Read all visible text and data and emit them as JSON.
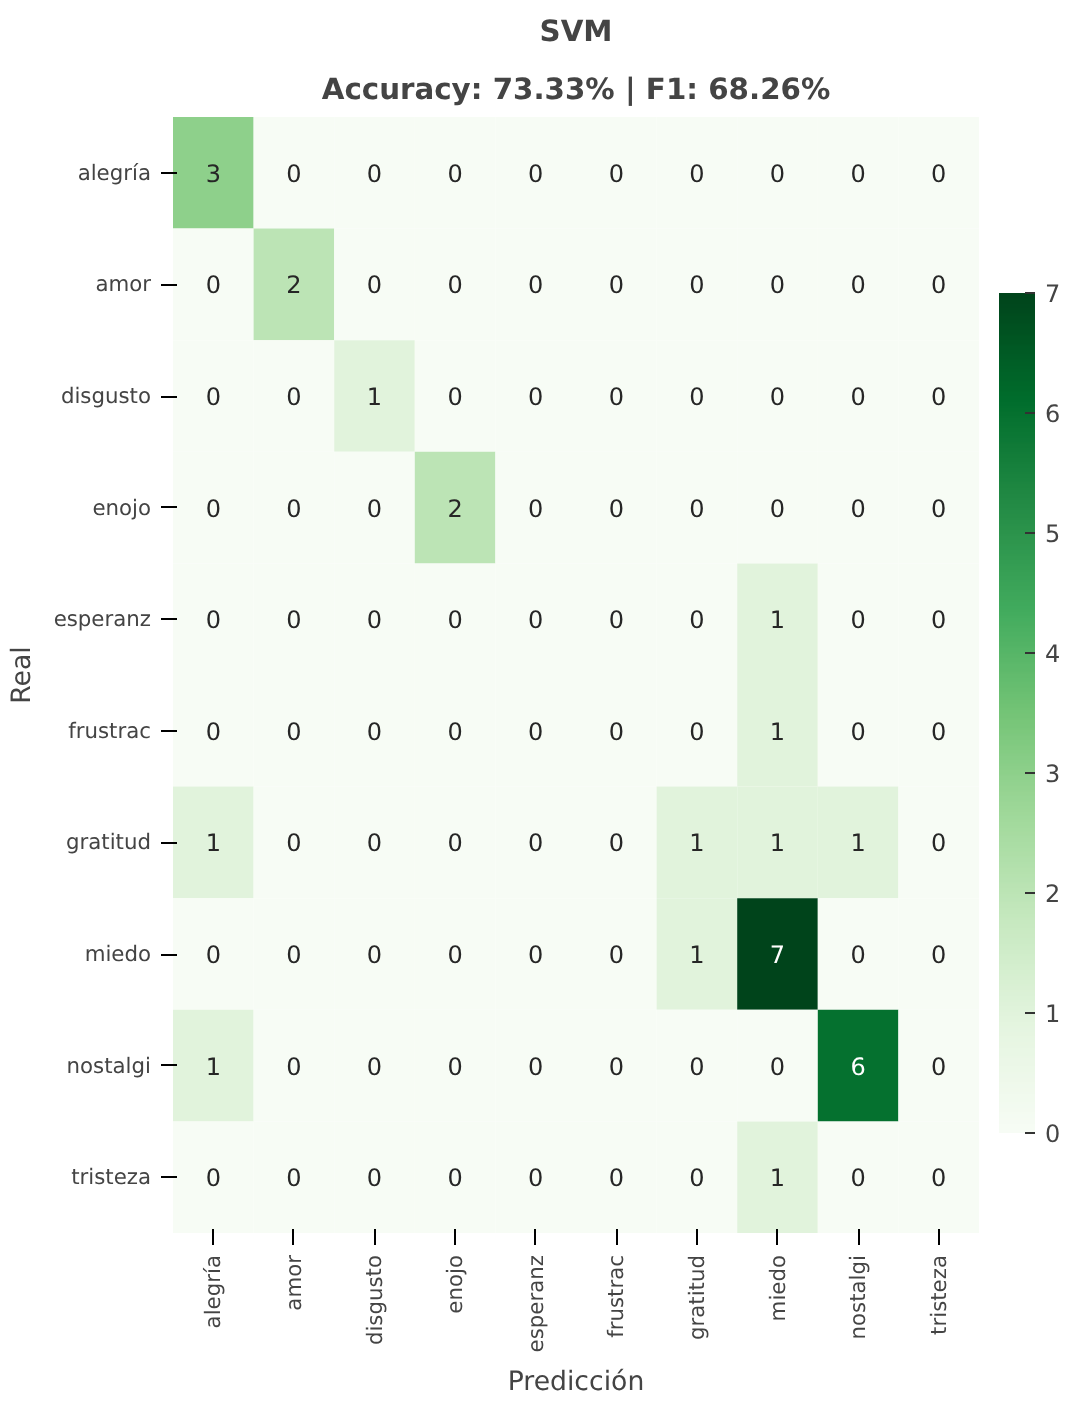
{
  "chart_data": {
    "type": "heatmap",
    "title": "SVM",
    "subtitle": "Accuracy: 73.33% | F1: 68.26%",
    "xlabel": "Predicción",
    "ylabel": "Real",
    "categories": [
      "alegría",
      "amor",
      "disgusto",
      "enojo",
      "esperanz",
      "frustrac",
      "gratitud",
      "miedo",
      "nostalgi",
      "tristeza"
    ],
    "y_categories": [
      "alegría",
      "amor",
      "disgusto",
      "enojo",
      "esperanz",
      "frustrac",
      "gratitud",
      "miedo",
      "nostalgi",
      "tristeza"
    ],
    "cells": [
      [
        3,
        0,
        0,
        0,
        0,
        0,
        0,
        0,
        0,
        0
      ],
      [
        0,
        2,
        0,
        0,
        0,
        0,
        0,
        0,
        0,
        0
      ],
      [
        0,
        0,
        1,
        0,
        0,
        0,
        0,
        0,
        0,
        0
      ],
      [
        0,
        0,
        0,
        2,
        0,
        0,
        0,
        0,
        0,
        0
      ],
      [
        0,
        0,
        0,
        0,
        0,
        0,
        0,
        1,
        0,
        0
      ],
      [
        0,
        0,
        0,
        0,
        0,
        0,
        0,
        1,
        0,
        0
      ],
      [
        1,
        0,
        0,
        0,
        0,
        0,
        1,
        1,
        1,
        0
      ],
      [
        0,
        0,
        0,
        0,
        0,
        0,
        1,
        7,
        0,
        0
      ],
      [
        1,
        0,
        0,
        0,
        0,
        0,
        0,
        0,
        6,
        0
      ],
      [
        0,
        0,
        0,
        0,
        0,
        0,
        0,
        1,
        0,
        0
      ]
    ],
    "clim": [
      0,
      7
    ],
    "cticks": [
      0,
      1,
      2,
      3,
      4,
      5,
      6,
      7
    ],
    "data_labels": true
  }
}
